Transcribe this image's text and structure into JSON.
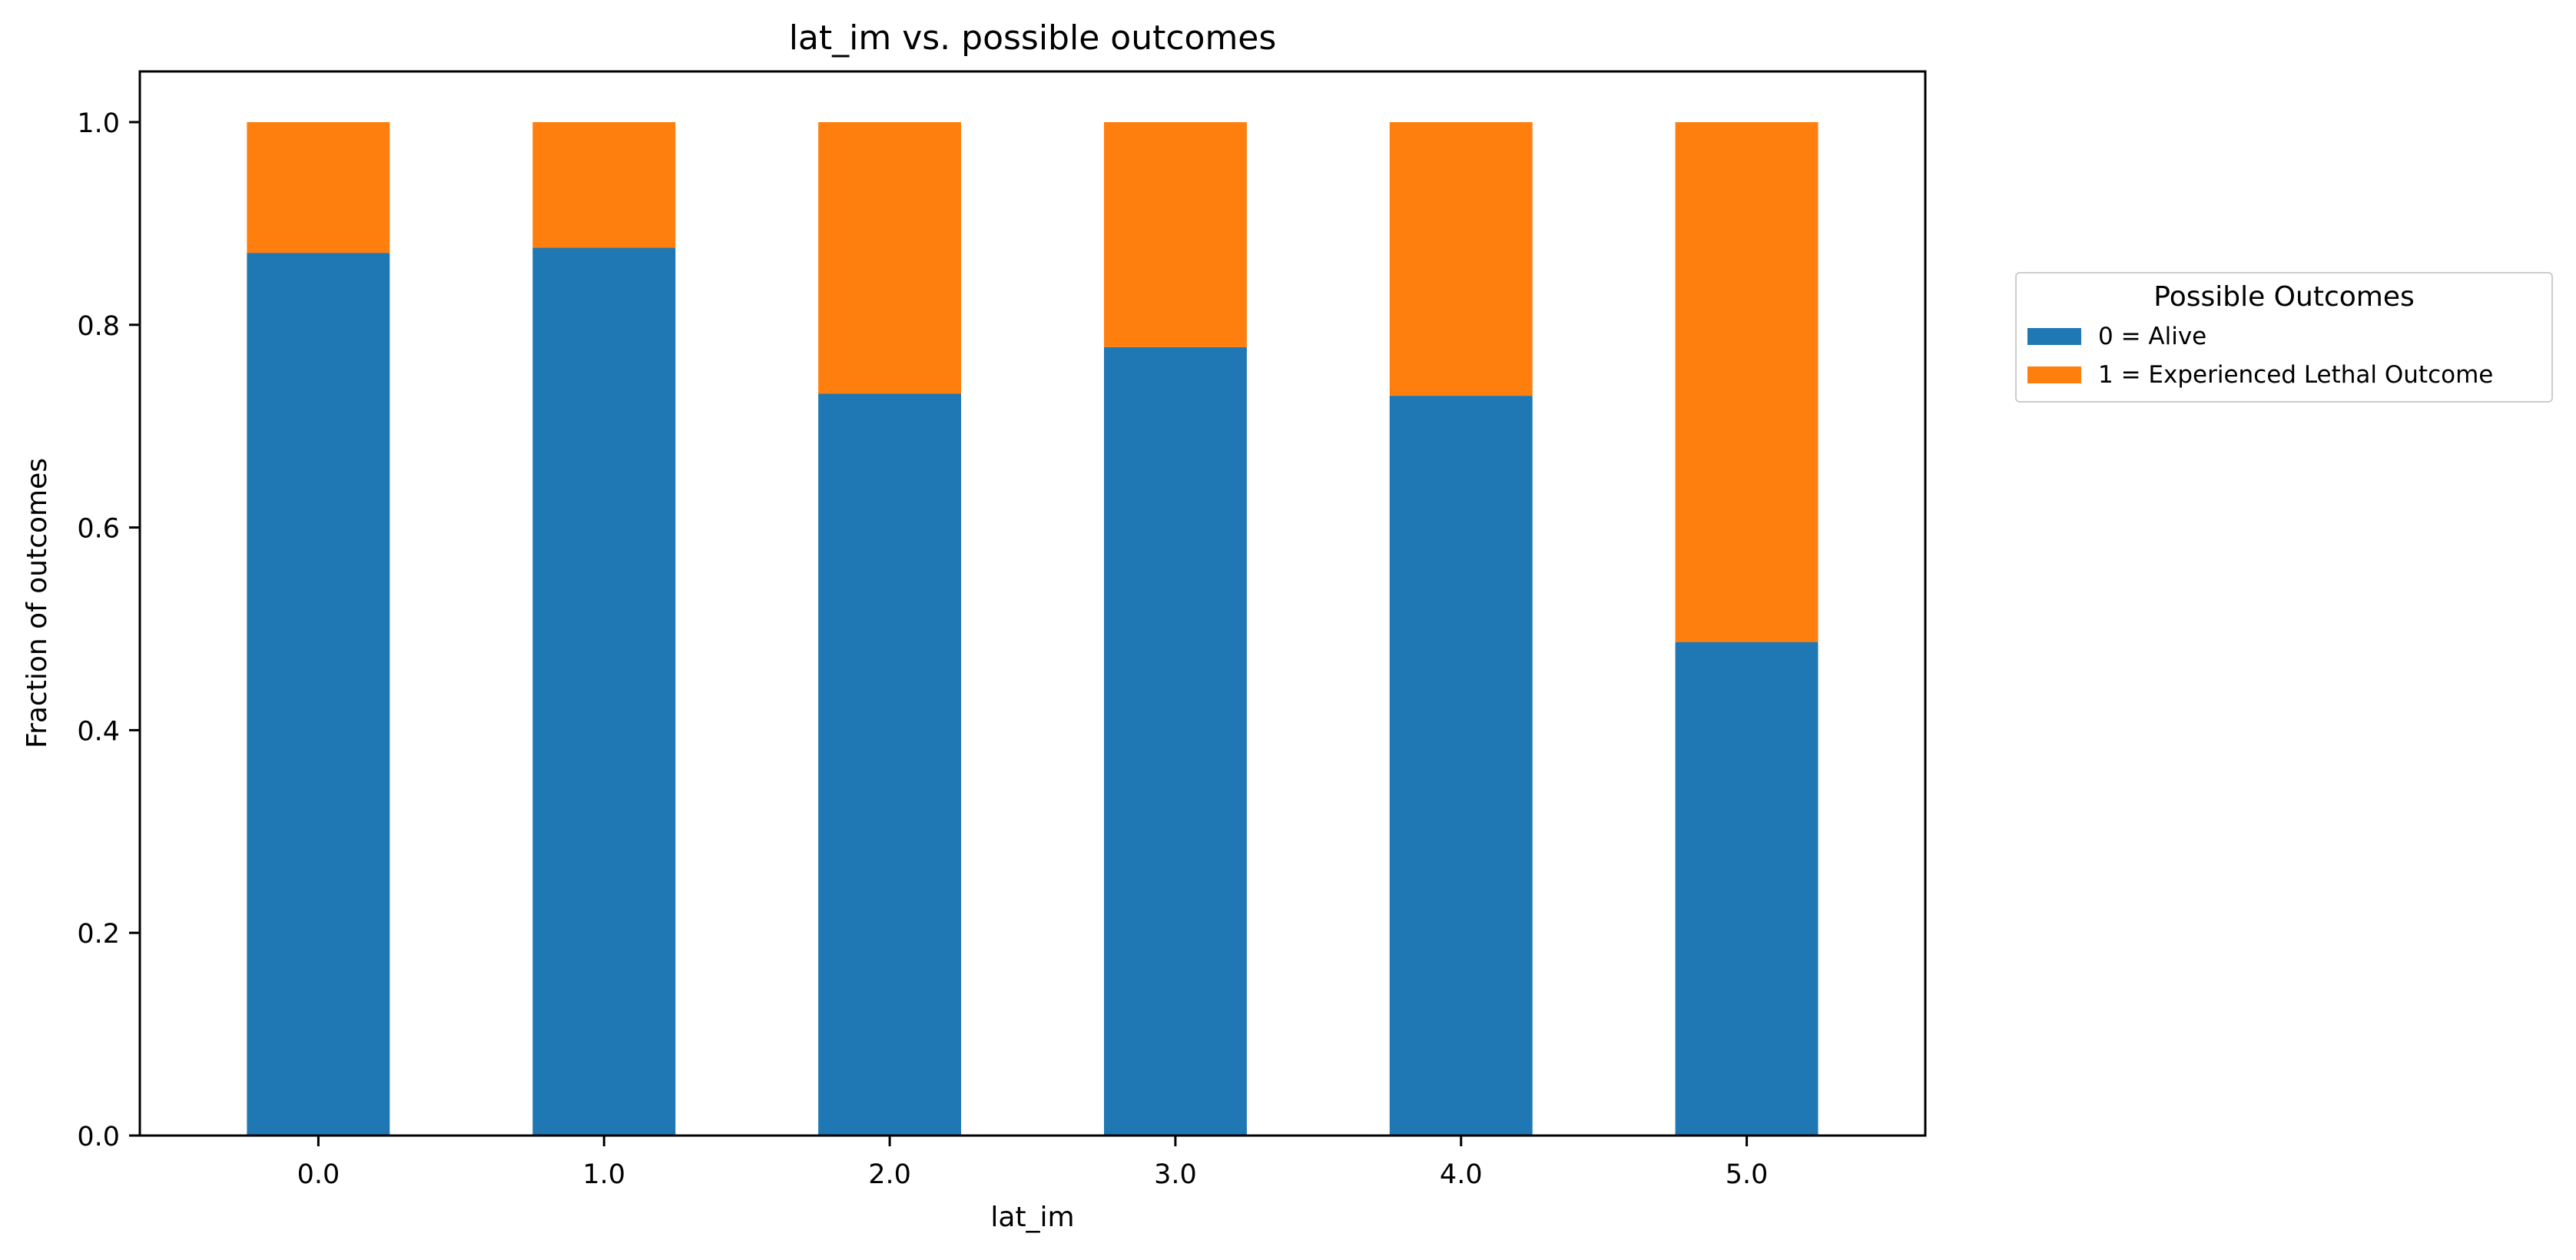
{
  "chart_data": {
    "type": "bar",
    "stacked": true,
    "title": "lat_im vs. possible outcomes",
    "xlabel": "lat_im",
    "ylabel": "Fraction of outcomes",
    "categories": [
      "0.0",
      "1.0",
      "2.0",
      "3.0",
      "4.0",
      "5.0"
    ],
    "ylim": [
      0,
      1.05
    ],
    "yticks": [
      "0.0",
      "0.2",
      "0.4",
      "0.6",
      "0.8",
      "1.0"
    ],
    "grid": false,
    "legend_position": "right",
    "legend_title": "Possible Outcomes",
    "series": [
      {
        "name": "0 = Alive",
        "color": "#1f77b4",
        "values": [
          0.871,
          0.876,
          0.732,
          0.778,
          0.73,
          0.487
        ]
      },
      {
        "name": "1 = Experienced Lethal Outcome",
        "color": "#ff7f0e",
        "values": [
          0.129,
          0.124,
          0.268,
          0.222,
          0.27,
          0.513
        ]
      }
    ]
  }
}
